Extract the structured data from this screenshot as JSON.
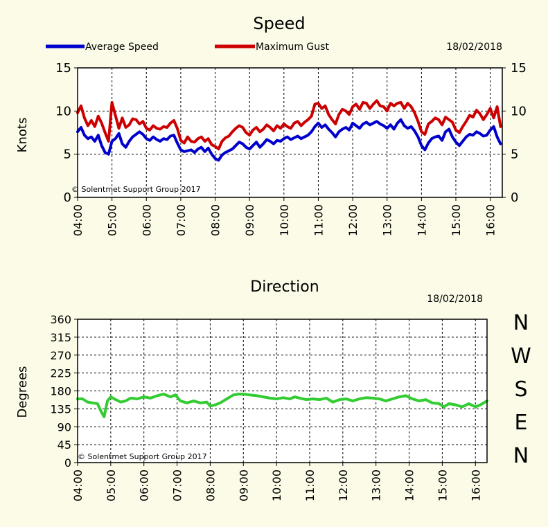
{
  "chart_data": [
    {
      "type": "line",
      "title": "Speed",
      "date": "18/02/2018",
      "ylabel": "Knots",
      "ylim": [
        0,
        15
      ],
      "yticks": [
        "0",
        "5",
        "10",
        "15"
      ],
      "xlim": [
        4.0,
        16.35
      ],
      "xticks": [
        "04:00",
        "05:00",
        "06:00",
        "07:00",
        "08:00",
        "09:00",
        "10:00",
        "11:00",
        "12:00",
        "13:00",
        "14:00",
        "15:00",
        "16:00"
      ],
      "watermark": "© Solentmet  Support  Group 2017",
      "grid": true,
      "legend_position": "top",
      "series": [
        {
          "name": "Average Speed",
          "color": "#0000cc",
          "x": [
            4.0,
            4.1,
            4.2,
            4.3,
            4.4,
            4.5,
            4.6,
            4.7,
            4.8,
            4.9,
            5.0,
            5.1,
            5.2,
            5.3,
            5.4,
            5.5,
            5.6,
            5.7,
            5.8,
            5.9,
            6.0,
            6.1,
            6.2,
            6.3,
            6.4,
            6.5,
            6.6,
            6.7,
            6.8,
            6.9,
            7.0,
            7.1,
            7.2,
            7.3,
            7.4,
            7.5,
            7.6,
            7.7,
            7.8,
            7.9,
            8.0,
            8.1,
            8.2,
            8.3,
            8.4,
            8.5,
            8.6,
            8.7,
            8.8,
            8.9,
            9.0,
            9.1,
            9.2,
            9.3,
            9.4,
            9.5,
            9.6,
            9.7,
            9.8,
            9.9,
            10.0,
            10.1,
            10.2,
            10.3,
            10.4,
            10.5,
            10.6,
            10.7,
            10.8,
            10.9,
            11.0,
            11.1,
            11.2,
            11.3,
            11.4,
            11.5,
            11.6,
            11.7,
            11.8,
            11.9,
            12.0,
            12.1,
            12.2,
            12.3,
            12.4,
            12.5,
            12.6,
            12.7,
            12.8,
            12.9,
            13.0,
            13.1,
            13.2,
            13.3,
            13.4,
            13.5,
            13.6,
            13.7,
            13.8,
            13.9,
            14.0,
            14.1,
            14.2,
            14.3,
            14.4,
            14.5,
            14.6,
            14.7,
            14.8,
            14.9,
            15.0,
            15.1,
            15.2,
            15.3,
            15.4,
            15.5,
            15.6,
            15.7,
            15.8,
            15.9,
            16.0,
            16.1,
            16.2,
            16.3
          ],
          "values": [
            7.6,
            8.1,
            7.2,
            6.8,
            7.0,
            6.5,
            7.2,
            6.0,
            5.2,
            5.0,
            6.5,
            6.8,
            7.4,
            6.2,
            5.8,
            6.5,
            7.0,
            7.3,
            7.6,
            7.3,
            6.8,
            6.6,
            7.0,
            6.7,
            6.5,
            6.8,
            6.7,
            7.1,
            7.2,
            6.3,
            5.5,
            5.3,
            5.4,
            5.5,
            5.2,
            5.6,
            5.8,
            5.3,
            5.7,
            5.0,
            4.5,
            4.3,
            4.9,
            5.2,
            5.4,
            5.6,
            6.0,
            6.4,
            6.2,
            5.8,
            5.6,
            6.0,
            6.4,
            5.8,
            6.2,
            6.7,
            6.5,
            6.2,
            6.6,
            6.5,
            6.8,
            7.0,
            6.7,
            6.9,
            7.1,
            6.8,
            7.0,
            7.2,
            7.6,
            8.2,
            8.6,
            8.1,
            8.4,
            7.9,
            7.5,
            7.0,
            7.6,
            7.9,
            8.1,
            7.8,
            8.6,
            8.3,
            8.0,
            8.5,
            8.7,
            8.4,
            8.6,
            8.8,
            8.5,
            8.3,
            8.0,
            8.4,
            7.9,
            8.6,
            9.0,
            8.3,
            8.0,
            8.2,
            7.7,
            7.0,
            6.0,
            5.5,
            6.3,
            6.8,
            7.0,
            7.1,
            6.6,
            7.6,
            7.9,
            7.0,
            6.4,
            6.0,
            6.5,
            7.0,
            7.3,
            7.2,
            7.6,
            7.4,
            7.1,
            7.2,
            7.8,
            8.2,
            7.0,
            6.2
          ]
        },
        {
          "name": "Maximum Gust",
          "color": "#cc0000",
          "x": [
            4.0,
            4.1,
            4.2,
            4.3,
            4.4,
            4.5,
            4.6,
            4.7,
            4.8,
            4.9,
            5.0,
            5.1,
            5.2,
            5.3,
            5.4,
            5.5,
            5.6,
            5.7,
            5.8,
            5.9,
            6.0,
            6.1,
            6.2,
            6.3,
            6.4,
            6.5,
            6.6,
            6.7,
            6.8,
            6.9,
            7.0,
            7.1,
            7.2,
            7.3,
            7.4,
            7.5,
            7.6,
            7.7,
            7.8,
            7.9,
            8.0,
            8.1,
            8.2,
            8.3,
            8.4,
            8.5,
            8.6,
            8.7,
            8.8,
            8.9,
            9.0,
            9.1,
            9.2,
            9.3,
            9.4,
            9.5,
            9.6,
            9.7,
            9.8,
            9.9,
            10.0,
            10.1,
            10.2,
            10.3,
            10.4,
            10.5,
            10.6,
            10.7,
            10.8,
            10.9,
            11.0,
            11.1,
            11.2,
            11.3,
            11.4,
            11.5,
            11.6,
            11.7,
            11.8,
            11.9,
            12.0,
            12.1,
            12.2,
            12.3,
            12.4,
            12.5,
            12.6,
            12.7,
            12.8,
            12.9,
            13.0,
            13.1,
            13.2,
            13.3,
            13.4,
            13.5,
            13.6,
            13.7,
            13.8,
            13.9,
            14.0,
            14.1,
            14.2,
            14.3,
            14.4,
            14.5,
            14.6,
            14.7,
            14.8,
            14.9,
            15.0,
            15.1,
            15.2,
            15.3,
            15.4,
            15.5,
            15.6,
            15.7,
            15.8,
            15.9,
            16.0,
            16.1,
            16.2,
            16.3
          ],
          "values": [
            9.8,
            10.6,
            9.2,
            8.3,
            8.9,
            8.2,
            9.4,
            8.6,
            7.5,
            6.5,
            11.0,
            9.5,
            8.0,
            9.2,
            8.1,
            8.4,
            9.1,
            9.0,
            8.5,
            8.8,
            8.0,
            7.8,
            8.3,
            8.0,
            7.9,
            8.2,
            8.1,
            8.6,
            8.9,
            8.0,
            6.6,
            6.3,
            7.0,
            6.5,
            6.4,
            6.8,
            7.0,
            6.5,
            6.8,
            6.1,
            5.9,
            5.6,
            6.5,
            6.9,
            7.1,
            7.6,
            8.0,
            8.3,
            8.1,
            7.5,
            7.2,
            7.8,
            8.1,
            7.6,
            7.9,
            8.4,
            8.1,
            7.7,
            8.3,
            8.0,
            8.5,
            8.2,
            8.0,
            8.6,
            8.8,
            8.3,
            8.7,
            9.0,
            9.4,
            10.8,
            10.9,
            10.3,
            10.6,
            9.6,
            9.0,
            8.5,
            9.6,
            10.2,
            10.0,
            9.6,
            10.5,
            10.8,
            10.2,
            11.0,
            10.9,
            10.3,
            10.8,
            11.2,
            10.6,
            10.5,
            10.0,
            10.9,
            10.6,
            10.9,
            11.0,
            10.3,
            10.9,
            10.5,
            9.8,
            8.8,
            7.6,
            7.3,
            8.5,
            8.8,
            9.2,
            9.0,
            8.4,
            9.3,
            9.0,
            8.7,
            7.8,
            7.5,
            8.2,
            8.8,
            9.5,
            9.3,
            10.1,
            9.7,
            9.0,
            9.6,
            10.3,
            9.2,
            10.5,
            8.2
          ]
        }
      ]
    },
    {
      "type": "line",
      "title": "Direction",
      "date": "18/02/2018",
      "ylabel": "Degrees",
      "ylim": [
        0,
        360
      ],
      "yticks": [
        "0",
        "45",
        "90",
        "135",
        "180",
        "225",
        "270",
        "315",
        "360"
      ],
      "compass_labels": [
        "N",
        "W",
        "S",
        "E",
        "N"
      ],
      "xlim": [
        4.0,
        16.35
      ],
      "xticks": [
        "04:00",
        "05:00",
        "06:00",
        "07:00",
        "08:00",
        "09:00",
        "10:00",
        "11:00",
        "12:00",
        "13:00",
        "14:00",
        "15:00",
        "16:00"
      ],
      "watermark": "© Solentmet  Support  Group 2017",
      "grid": true,
      "series": [
        {
          "color": "#33cc33",
          "x": [
            4.0,
            4.15,
            4.3,
            4.45,
            4.6,
            4.7,
            4.8,
            4.9,
            5.0,
            5.15,
            5.3,
            5.45,
            5.6,
            5.8,
            6.0,
            6.2,
            6.4,
            6.6,
            6.8,
            6.95,
            7.1,
            7.3,
            7.5,
            7.7,
            7.9,
            8.0,
            8.15,
            8.3,
            8.5,
            8.7,
            8.85,
            9.0,
            9.2,
            9.4,
            9.6,
            9.8,
            10.0,
            10.2,
            10.4,
            10.55,
            10.7,
            10.9,
            11.1,
            11.3,
            11.5,
            11.7,
            11.9,
            12.1,
            12.3,
            12.5,
            12.7,
            12.9,
            13.1,
            13.3,
            13.5,
            13.7,
            13.9,
            14.1,
            14.3,
            14.5,
            14.7,
            14.9,
            15.05,
            15.2,
            15.4,
            15.6,
            15.8,
            16.0,
            16.15,
            16.35
          ],
          "values": [
            160,
            160,
            152,
            150,
            148,
            130,
            115,
            155,
            165,
            158,
            152,
            155,
            162,
            160,
            165,
            162,
            168,
            172,
            165,
            170,
            155,
            150,
            155,
            150,
            152,
            142,
            145,
            150,
            160,
            170,
            172,
            172,
            170,
            168,
            165,
            162,
            160,
            163,
            160,
            165,
            162,
            158,
            160,
            158,
            162,
            152,
            158,
            160,
            155,
            160,
            163,
            162,
            160,
            155,
            160,
            165,
            168,
            160,
            155,
            158,
            150,
            148,
            140,
            148,
            145,
            140,
            148,
            140,
            145,
            155
          ]
        }
      ]
    }
  ]
}
